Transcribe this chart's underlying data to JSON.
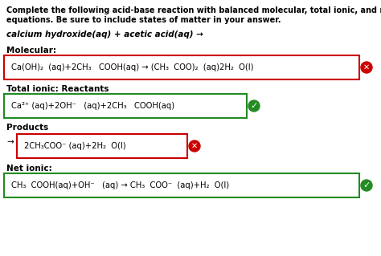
{
  "bg_color": "#ffffff",
  "title_line1": "Complete the following acid-base reaction with balanced molecular, total ionic, and net ionic",
  "title_line2": "equations. Be sure to include states of matter in your answer.",
  "problem_text": "calcium hydroxide(aq) + acetic acid(aq) →",
  "molecular_label": "Molecular:",
  "molecular_eq": "Ca(OH)₂  (aq)+2CH₃   COOH(aq) → (CH₃  COO)₂  (aq)2H₂  O(l)",
  "molecular_box_color": "#cc0000",
  "molecular_correct": false,
  "total_ionic_label": "Total ionic: Reactants",
  "total_ionic_eq": "Ca²⁺ (aq)+2OH⁻   (aq)+2CH₃   COOH(aq)",
  "total_ionic_box_color": "#228B22",
  "total_ionic_correct": true,
  "products_label": "Products",
  "products_eq": "2CH₃COO⁻ (aq)+2H₂  O(l)",
  "products_box_color": "#cc0000",
  "products_correct": false,
  "net_ionic_label": "Net ionic:",
  "net_ionic_eq": "CH₃  COOH(aq)+OH⁻   (aq) → CH₃  COO⁻  (aq)+H₂  O(l)",
  "net_ionic_box_color": "#228B22",
  "net_ionic_correct": true,
  "font_size_title": 7.0,
  "font_size_label": 7.5,
  "font_size_eq": 7.2,
  "arrow": "→"
}
